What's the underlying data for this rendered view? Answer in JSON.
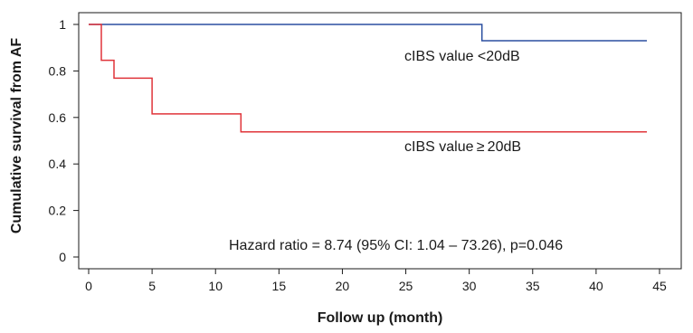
{
  "chart_data": {
    "type": "line",
    "title": "",
    "xlabel": "Follow up (month)",
    "ylabel": "Cumulative survival from AF",
    "xlim": [
      0,
      45
    ],
    "ylim": [
      0,
      1
    ],
    "x_ticks": [
      0,
      5,
      10,
      15,
      20,
      25,
      30,
      35,
      40,
      45
    ],
    "y_ticks": [
      0,
      0.2,
      0.4,
      0.6,
      0.8,
      1
    ],
    "x_tick_labels": [
      "0",
      "5",
      "10",
      "15",
      "20",
      "25",
      "30",
      "35",
      "40",
      "45"
    ],
    "y_tick_labels": [
      "0",
      "0.2",
      "0.4",
      "0.6",
      "0.8",
      "1"
    ],
    "step": true,
    "grid": false,
    "series": [
      {
        "name": "cIBS value <20dB",
        "color": "#2b4fa0",
        "points": [
          [
            0,
            1
          ],
          [
            31,
            1
          ],
          [
            31,
            0.93
          ],
          [
            44,
            0.93
          ]
        ]
      },
      {
        "name": "cIBS value ≥ 20dB",
        "color": "#e0343a",
        "points": [
          [
            0,
            1
          ],
          [
            1,
            1
          ],
          [
            1,
            0.846
          ],
          [
            2,
            0.846
          ],
          [
            2,
            0.769
          ],
          [
            5,
            0.769
          ],
          [
            5,
            0.615
          ],
          [
            12,
            0.615
          ],
          [
            12,
            0.538
          ],
          [
            44,
            0.538
          ]
        ]
      }
    ],
    "annotations": [
      {
        "text": "Hazard ratio = 8.74 (95% CI: 1.04 – 73.26), p=0.046"
      }
    ]
  }
}
